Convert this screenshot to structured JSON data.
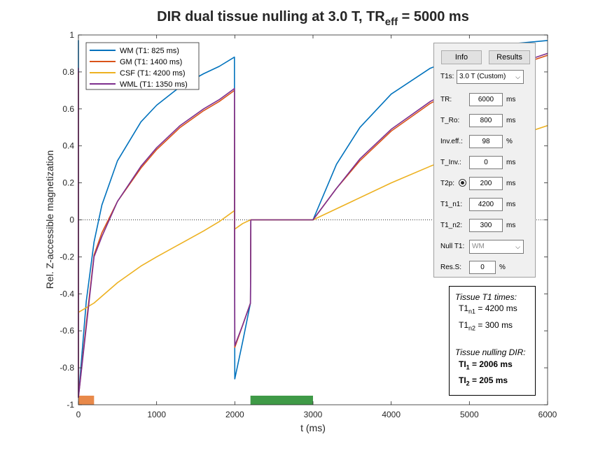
{
  "chart_data": {
    "type": "line",
    "title": "DIR dual tissue nulling at 3.0 T, TR",
    "title_sub": "eff",
    "title_tail": " = 5000 ms",
    "xlabel": "t (ms)",
    "ylabel": "Rel. Z-accessible magnetization",
    "xlim": [
      0,
      6000
    ],
    "ylim": [
      -1,
      1
    ],
    "xticks": [
      0,
      1000,
      2000,
      3000,
      4000,
      5000,
      6000
    ],
    "yticks": [
      -1,
      -0.8,
      -0.6,
      -0.4,
      -0.2,
      0,
      0.2,
      0.4,
      0.6,
      0.8,
      1
    ],
    "ytick_labels": [
      "-1",
      "-0.8",
      "-0.6",
      "-0.4",
      "-0.2",
      "0",
      "0.2",
      "0.4",
      "0.6",
      "0.8",
      "1"
    ],
    "xtick_labels": [
      "0",
      "1000",
      "2000",
      "3000",
      "4000",
      "5000",
      "6000"
    ],
    "grid": false,
    "zero_line": "dotted",
    "legend_position": "top-left",
    "series": [
      {
        "name": "WM  (T1:  825 ms)",
        "color": "#0072BD",
        "T1": 825,
        "points": [
          [
            0,
            -0.96
          ],
          [
            0,
            0.97
          ],
          [
            0,
            -0.96
          ],
          [
            100,
            -0.44
          ],
          [
            200,
            -0.12
          ],
          [
            300,
            0.08
          ],
          [
            500,
            0.32
          ],
          [
            800,
            0.53
          ],
          [
            1000,
            0.62
          ],
          [
            1300,
            0.72
          ],
          [
            1600,
            0.79
          ],
          [
            1800,
            0.83
          ],
          [
            1995,
            0.88
          ],
          [
            2000,
            -0.86
          ],
          [
            2100,
            -0.66
          ],
          [
            2200,
            -0.45
          ],
          [
            2205,
            0
          ],
          [
            3000,
            0
          ],
          [
            3300,
            0.3
          ],
          [
            3600,
            0.5
          ],
          [
            4000,
            0.68
          ],
          [
            4500,
            0.82
          ],
          [
            5000,
            0.9
          ],
          [
            5500,
            0.95
          ],
          [
            6000,
            0.97
          ]
        ]
      },
      {
        "name": "GM  (T1: 1400 ms)",
        "color": "#D95319",
        "T1": 1400,
        "points": [
          [
            0,
            -0.96
          ],
          [
            0,
            0.8
          ],
          [
            0,
            -0.96
          ],
          [
            100,
            -0.56
          ],
          [
            200,
            -0.19
          ],
          [
            300,
            -0.07
          ],
          [
            500,
            0.1
          ],
          [
            800,
            0.28
          ],
          [
            1000,
            0.38
          ],
          [
            1300,
            0.5
          ],
          [
            1600,
            0.59
          ],
          [
            1800,
            0.64
          ],
          [
            1995,
            0.7
          ],
          [
            2000,
            -0.69
          ],
          [
            2100,
            -0.57
          ],
          [
            2200,
            -0.45
          ],
          [
            2205,
            0
          ],
          [
            3000,
            0
          ],
          [
            3300,
            0.17
          ],
          [
            3600,
            0.32
          ],
          [
            4000,
            0.48
          ],
          [
            4500,
            0.63
          ],
          [
            5000,
            0.74
          ],
          [
            5500,
            0.82
          ],
          [
            6000,
            0.89
          ]
        ]
      },
      {
        "name": "CSF (T1: 4200 ms)",
        "color": "#EDB120",
        "T1": 4200,
        "points": [
          [
            0,
            -0.5
          ],
          [
            200,
            -0.45
          ],
          [
            500,
            -0.34
          ],
          [
            800,
            -0.25
          ],
          [
            1000,
            -0.2
          ],
          [
            1300,
            -0.13
          ],
          [
            1600,
            -0.06
          ],
          [
            1800,
            -0.01
          ],
          [
            1995,
            0.05
          ],
          [
            2000,
            -0.05
          ],
          [
            2100,
            -0.02
          ],
          [
            2200,
            0
          ],
          [
            3000,
            0
          ],
          [
            3500,
            0.1
          ],
          [
            4000,
            0.2
          ],
          [
            4500,
            0.29
          ],
          [
            5000,
            0.37
          ],
          [
            5500,
            0.44
          ],
          [
            6000,
            0.51
          ]
        ]
      },
      {
        "name": "WML (T1: 1350 ms)",
        "color": "#7E2F8E",
        "T1": 1350,
        "points": [
          [
            0,
            -0.96
          ],
          [
            0,
            0.82
          ],
          [
            0,
            -0.96
          ],
          [
            100,
            -0.58
          ],
          [
            200,
            -0.2
          ],
          [
            300,
            -0.09
          ],
          [
            500,
            0.1
          ],
          [
            800,
            0.29
          ],
          [
            1000,
            0.39
          ],
          [
            1300,
            0.51
          ],
          [
            1600,
            0.6
          ],
          [
            1800,
            0.65
          ],
          [
            1995,
            0.71
          ],
          [
            2000,
            -0.68
          ],
          [
            2100,
            -0.57
          ],
          [
            2200,
            -0.45
          ],
          [
            2205,
            0
          ],
          [
            3000,
            0
          ],
          [
            3300,
            0.17
          ],
          [
            3600,
            0.33
          ],
          [
            4000,
            0.49
          ],
          [
            4500,
            0.64
          ],
          [
            5000,
            0.75
          ],
          [
            5500,
            0.83
          ],
          [
            6000,
            0.9
          ]
        ]
      }
    ],
    "markers": [
      {
        "x0": 0,
        "x1": 200,
        "color": "#E8894A"
      },
      {
        "x0": 2200,
        "x1": 3000,
        "color": "#3F9A47"
      }
    ]
  },
  "panel": {
    "info_button": "Info",
    "results_button": "Results",
    "t1s_label": "T1s:",
    "t1s_value": "3.0 T (Custom)",
    "rows": [
      {
        "label": "TR:",
        "value": "6000",
        "unit": "ms"
      },
      {
        "label": "T_Ro:",
        "value": "800",
        "unit": "ms"
      },
      {
        "label": "Inv.eff.:",
        "value": "98",
        "unit": "%"
      },
      {
        "label": "T_Inv.:",
        "value": "0",
        "unit": "ms"
      },
      {
        "label": "T2p:",
        "value": "200",
        "unit": "ms"
      },
      {
        "label": "T1_n1:",
        "value": "4200",
        "unit": "ms"
      },
      {
        "label": "T1_n2:",
        "value": "300",
        "unit": "ms"
      }
    ],
    "null_t1_label": "Null T1:",
    "null_t1_value": "WM",
    "res_label": "Res.S:",
    "res_value": "0",
    "res_unit": "%"
  },
  "infobox": {
    "heading1": "Tissue T1 times:",
    "t1_sym": "T1",
    "n1_sub": "n1",
    "n1_val": " = 4200 ms",
    "n2_sub": "n2",
    "n2_val": " =  300 ms",
    "heading2": "Tissue nulling DIR:",
    "ti_sym": "TI",
    "ti1_sub": "1",
    "ti1_val": " = 2006 ms",
    "ti2_sub": "2",
    "ti2_val": " = 205 ms"
  }
}
